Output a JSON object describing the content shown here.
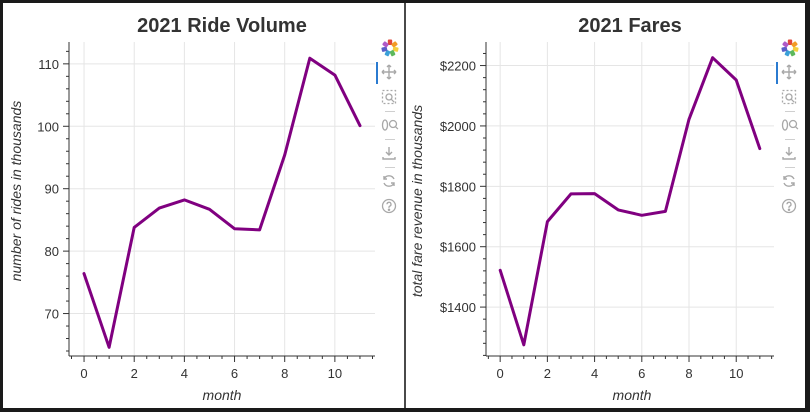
{
  "line_color": "#800080",
  "chart_data": [
    {
      "type": "line",
      "title": "2021 Ride Volume",
      "xlabel": "month",
      "ylabel": "number of rides in thousands",
      "x": [
        0,
        1,
        2,
        3,
        4,
        5,
        6,
        7,
        8,
        9,
        10,
        11
      ],
      "series": [
        {
          "values": [
            76.4,
            64.6,
            83.8,
            86.9,
            88.2,
            86.7,
            83.6,
            83.4,
            95.4,
            110.9,
            108.2,
            100.1
          ]
        }
      ],
      "xlim": [
        -0.6,
        11.6
      ],
      "ylim": [
        63.2,
        113.5
      ],
      "xticks": [
        0,
        2,
        4,
        6,
        8,
        10
      ],
      "yticks": [
        70,
        80,
        90,
        100,
        110
      ],
      "ytick_labels": [
        "70",
        "80",
        "90",
        "100",
        "110"
      ],
      "xtick_labels": [
        "0",
        "2",
        "4",
        "6",
        "8",
        "10"
      ],
      "grid": true
    },
    {
      "type": "line",
      "title": "2021 Fares",
      "xlabel": "month",
      "ylabel": "total fare revenue in thousands",
      "x": [
        0,
        1,
        2,
        3,
        4,
        5,
        6,
        7,
        8,
        9,
        10,
        11
      ],
      "series": [
        {
          "values": [
            1522,
            1275,
            1683,
            1775,
            1776,
            1722,
            1704,
            1717,
            2022,
            2226,
            2152,
            1925
          ]
        }
      ],
      "xlim": [
        -0.6,
        11.6
      ],
      "ylim": [
        1238,
        2278
      ],
      "xticks": [
        0,
        2,
        4,
        6,
        8,
        10
      ],
      "yticks": [
        1400,
        1600,
        1800,
        2000,
        2200
      ],
      "ytick_labels": [
        "$1400",
        "$1600",
        "$1800",
        "$2000",
        "$2200"
      ],
      "xtick_labels": [
        "0",
        "2",
        "4",
        "6",
        "8",
        "10"
      ],
      "grid": true
    }
  ],
  "toolbar": {
    "icons": [
      "bokeh-logo-icon",
      "pan-icon",
      "box-zoom-icon",
      "wheel-zoom-icon",
      "save-icon",
      "reset-icon",
      "help-icon"
    ]
  }
}
